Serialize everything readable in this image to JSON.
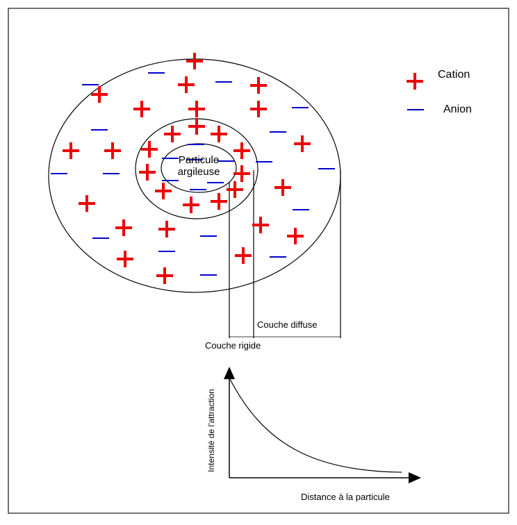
{
  "legend": {
    "cation": "Cation",
    "anion": "Anion"
  },
  "particle": {
    "line1": "Particule",
    "line2": "argileuse"
  },
  "layers": {
    "diffuse": "Couche diffuse",
    "rigid": "Couche rigide"
  },
  "graph": {
    "y_label": "Intensité de l'attraction",
    "x_label": "Distance à la particule"
  }
}
